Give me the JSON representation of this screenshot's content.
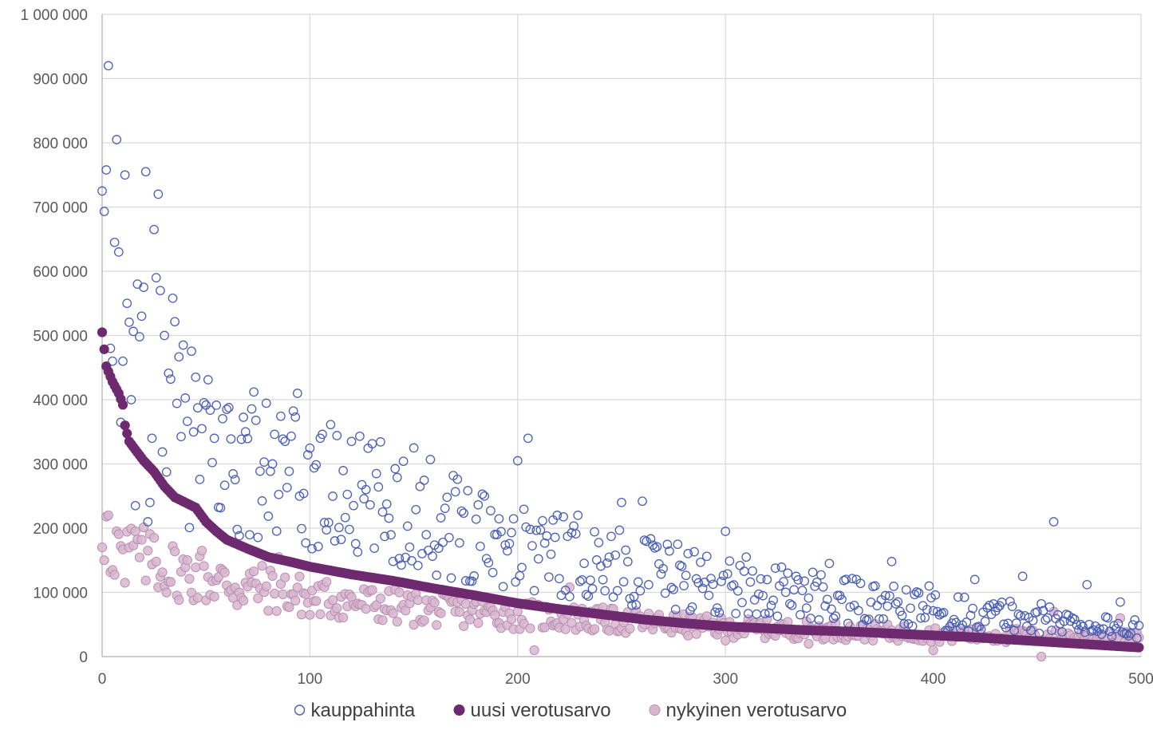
{
  "chart_data": {
    "type": "scatter",
    "title": "",
    "xlabel": "",
    "ylabel": "",
    "xlim": [
      0,
      500
    ],
    "ylim": [
      0,
      1000000
    ],
    "x_ticks": [
      0,
      100,
      200,
      300,
      400,
      500
    ],
    "y_ticks": [
      0,
      100000,
      200000,
      300000,
      400000,
      500000,
      600000,
      700000,
      800000,
      900000,
      1000000
    ],
    "x_tick_labels": [
      "0",
      "100",
      "200",
      "300",
      "400",
      "500"
    ],
    "y_tick_labels": [
      "0",
      "100 000",
      "200 000",
      "300 000",
      "400 000",
      "500 000",
      "600 000",
      "700 000",
      "800 000",
      "900 000",
      "1 000 000"
    ],
    "grid": true,
    "legend_position": "bottom",
    "point_count": 500,
    "series": [
      {
        "name": "kauppahinta",
        "marker": "hollow-circle",
        "color": "#4a5fb5",
        "highlight_points": [
          [
            0,
            725000
          ],
          [
            3,
            920000
          ],
          [
            4,
            480000
          ],
          [
            5,
            460000
          ],
          [
            6,
            645000
          ],
          [
            7,
            805000
          ],
          [
            8,
            630000
          ],
          [
            10,
            460000
          ],
          [
            11,
            750000
          ],
          [
            12,
            550000
          ],
          [
            14,
            400000
          ],
          [
            16,
            235000
          ],
          [
            17,
            580000
          ],
          [
            18,
            498000
          ],
          [
            19,
            530000
          ],
          [
            20,
            575000
          ],
          [
            21,
            755000
          ],
          [
            22,
            210000
          ],
          [
            24,
            340000
          ],
          [
            25,
            665000
          ],
          [
            26,
            590000
          ],
          [
            27,
            720000
          ],
          [
            28,
            570000
          ],
          [
            30,
            500000
          ],
          [
            33,
            432000
          ],
          [
            34,
            558000
          ],
          [
            45,
            435000
          ],
          [
            60,
            385000
          ],
          [
            73,
            412000
          ],
          [
            94,
            410000
          ],
          [
            105,
            340000
          ],
          [
            120,
            335000
          ],
          [
            150,
            325000
          ],
          [
            184,
            250000
          ],
          [
            200,
            305000
          ],
          [
            205,
            340000
          ],
          [
            250,
            240000
          ],
          [
            260,
            242000
          ],
          [
            300,
            195000
          ],
          [
            310,
            155000
          ],
          [
            330,
            130000
          ],
          [
            350,
            145000
          ],
          [
            380,
            148000
          ],
          [
            398,
            110000
          ],
          [
            420,
            120000
          ],
          [
            443,
            125000
          ],
          [
            458,
            210000
          ],
          [
            474,
            112000
          ],
          [
            490,
            85000
          ],
          [
            500,
            25000
          ]
        ],
        "trend": [
          [
            0,
            560000
          ],
          [
            10,
            450000
          ],
          [
            25,
            400000
          ],
          [
            50,
            320000
          ],
          [
            75,
            290000
          ],
          [
            100,
            265000
          ],
          [
            150,
            225000
          ],
          [
            200,
            180000
          ],
          [
            250,
            140000
          ],
          [
            300,
            110000
          ],
          [
            350,
            90000
          ],
          [
            400,
            70000
          ],
          [
            450,
            60000
          ],
          [
            500,
            40000
          ]
        ]
      },
      {
        "name": "uusi verotusarvo",
        "marker": "filled-circle",
        "color": "#6e2a6e",
        "trend": [
          [
            0,
            505000
          ],
          [
            2,
            452000
          ],
          [
            5,
            428000
          ],
          [
            8,
            410000
          ],
          [
            10,
            392000
          ],
          [
            11,
            360000
          ],
          [
            13,
            335000
          ],
          [
            16,
            322000
          ],
          [
            20,
            305000
          ],
          [
            25,
            288000
          ],
          [
            30,
            265000
          ],
          [
            35,
            248000
          ],
          [
            40,
            240000
          ],
          [
            45,
            232000
          ],
          [
            50,
            210000
          ],
          [
            55,
            195000
          ],
          [
            60,
            182000
          ],
          [
            70,
            168000
          ],
          [
            80,
            155000
          ],
          [
            90,
            148000
          ],
          [
            100,
            140000
          ],
          [
            120,
            128000
          ],
          [
            140,
            118000
          ],
          [
            160,
            106000
          ],
          [
            180,
            95000
          ],
          [
            200,
            83000
          ],
          [
            220,
            74000
          ],
          [
            240,
            66000
          ],
          [
            260,
            58000
          ],
          [
            280,
            52000
          ],
          [
            300,
            47000
          ],
          [
            320,
            44000
          ],
          [
            340,
            41000
          ],
          [
            360,
            39000
          ],
          [
            380,
            36000
          ],
          [
            400,
            33000
          ],
          [
            420,
            30000
          ],
          [
            440,
            26000
          ],
          [
            460,
            22000
          ],
          [
            480,
            18000
          ],
          [
            500,
            14000
          ]
        ]
      },
      {
        "name": "nykyinen verotusarvo",
        "marker": "filled-circle",
        "color": "#d8b6d0",
        "highlight_points": [
          [
            0,
            170000
          ],
          [
            2,
            218000
          ],
          [
            3,
            220000
          ],
          [
            5,
            135000
          ],
          [
            7,
            195000
          ],
          [
            9,
            172000
          ],
          [
            11,
            115000
          ],
          [
            16,
            195000
          ],
          [
            22,
            165000
          ],
          [
            25,
            185000
          ],
          [
            30,
            110000
          ],
          [
            36,
            95000
          ],
          [
            48,
            165000
          ],
          [
            65,
            80000
          ],
          [
            85,
            155000
          ],
          [
            100,
            65000
          ],
          [
            208,
            10000
          ],
          [
            225,
            108000
          ],
          [
            300,
            25000
          ],
          [
            340,
            20000
          ],
          [
            400,
            10000
          ],
          [
            452,
            0
          ],
          [
            458,
            70000
          ],
          [
            490,
            60000
          ]
        ],
        "trend": [
          [
            0,
            180000
          ],
          [
            10,
            165000
          ],
          [
            25,
            145000
          ],
          [
            50,
            120000
          ],
          [
            75,
            108000
          ],
          [
            100,
            92000
          ],
          [
            150,
            75000
          ],
          [
            200,
            65000
          ],
          [
            250,
            55000
          ],
          [
            300,
            45000
          ],
          [
            350,
            40000
          ],
          [
            400,
            35000
          ],
          [
            450,
            32000
          ],
          [
            500,
            28000
          ]
        ]
      }
    ]
  }
}
